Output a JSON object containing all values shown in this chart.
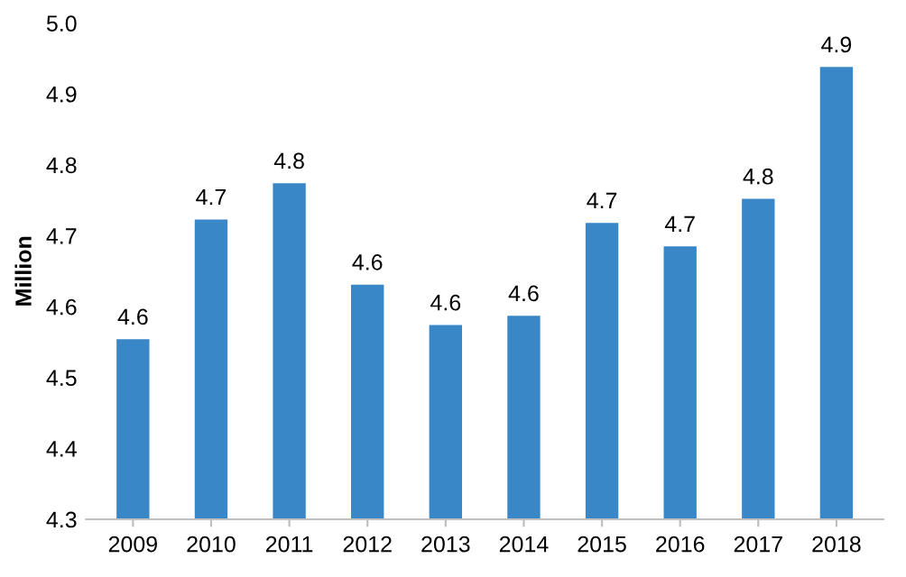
{
  "chart_data": {
    "type": "bar",
    "ylabel": "Million",
    "categories": [
      "2009",
      "2010",
      "2011",
      "2012",
      "2013",
      "2014",
      "2015",
      "2016",
      "2017",
      "2018"
    ],
    "values": [
      4.554,
      4.723,
      4.774,
      4.631,
      4.574,
      4.587,
      4.718,
      4.685,
      4.752,
      4.938
    ],
    "value_labels": [
      "4.6",
      "4.7",
      "4.8",
      "4.6",
      "4.6",
      "4.6",
      "4.7",
      "4.7",
      "4.8",
      "4.9"
    ],
    "color": "#3a87c8",
    "ylim": [
      4.3,
      5.0
    ],
    "yticks": [
      {
        "value": 4.3,
        "label": "4.3"
      },
      {
        "value": 4.4,
        "label": "4.4"
      },
      {
        "value": 4.5,
        "label": "4.5"
      },
      {
        "value": 4.6,
        "label": "4.6"
      },
      {
        "value": 4.7,
        "label": "4.7"
      },
      {
        "value": 4.8,
        "label": "4.8"
      },
      {
        "value": 4.9,
        "label": "4.9"
      },
      {
        "value": 5.0,
        "label": "5.0"
      }
    ],
    "grid": false,
    "legend": false
  }
}
